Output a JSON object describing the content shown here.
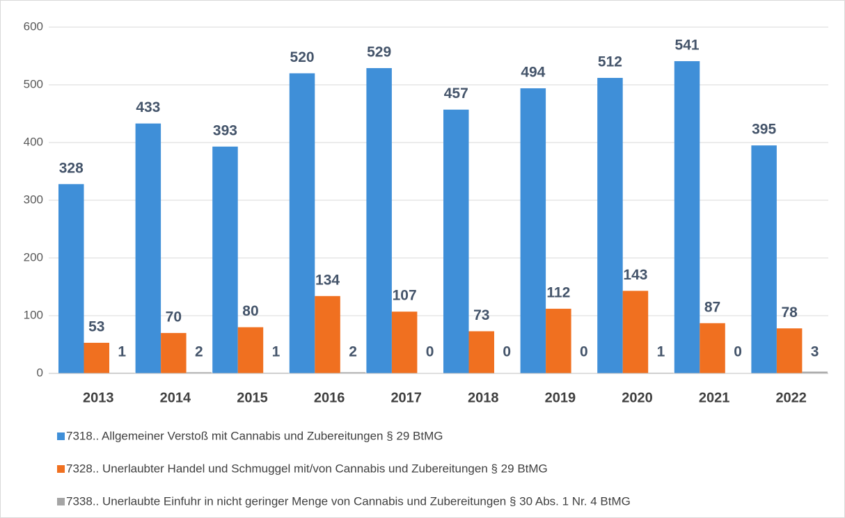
{
  "chart_data": {
    "type": "bar",
    "categories": [
      "2013",
      "2014",
      "2015",
      "2016",
      "2017",
      "2018",
      "2019",
      "2020",
      "2021",
      "2022"
    ],
    "series": [
      {
        "name": "7318.. Allgemeiner Verstoß mit Cannabis und Zubereitungen § 29 BtMG",
        "color": "#3f8fd8",
        "values": [
          328,
          433,
          393,
          520,
          529,
          457,
          494,
          512,
          541,
          395
        ]
      },
      {
        "name": "7328.. Unerlaubter Handel und Schmuggel mit/von Cannabis und Zubereitungen § 29 BtMG",
        "color": "#f07020",
        "values": [
          53,
          70,
          80,
          134,
          107,
          73,
          112,
          143,
          87,
          78
        ]
      },
      {
        "name": "7338.. Unerlaubte Einfuhr in nicht geringer Menge von Cannabis und Zubereitungen § 30 Abs. 1 Nr. 4 BtMG",
        "color": "#a5a5a5",
        "values": [
          1,
          2,
          1,
          2,
          0,
          0,
          0,
          1,
          0,
          3
        ]
      }
    ],
    "ylim": [
      0,
      600
    ],
    "yticks": [
      0,
      100,
      200,
      300,
      400,
      500,
      600
    ],
    "grid": true,
    "legend": "bottom"
  }
}
